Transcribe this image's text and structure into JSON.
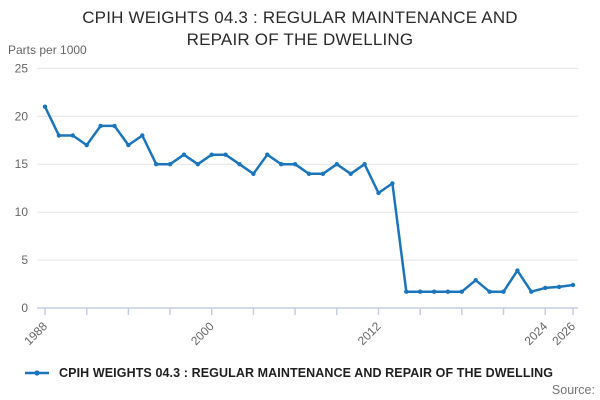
{
  "title": {
    "line1": "CPIH WEIGHTS 04.3 : REGULAR MAINTENANCE AND",
    "line2": "REPAIR OF THE DWELLING"
  },
  "units_label": "Parts per 1000",
  "legend": {
    "label": "CPIH WEIGHTS 04.3 : REGULAR MAINTENANCE AND REPAIR OF THE DWELLING"
  },
  "source_label": "Source:",
  "colors": {
    "line": "#1b75bc",
    "grid": "#e4e4e4",
    "axis": "#c3cfe6",
    "tick_text": "#666666",
    "title_text": "#2b2b2b"
  },
  "chart_data": {
    "type": "line",
    "title": "CPIH WEIGHTS 04.3 : REGULAR MAINTENANCE AND REPAIR OF THE DWELLING",
    "ylabel": "Parts per 1000",
    "xlabel": "",
    "ylim": [
      0,
      25
    ],
    "yticks": [
      0,
      5,
      10,
      15,
      20,
      25
    ],
    "xticks": [
      1988,
      1991,
      1994,
      1997,
      2000,
      2003,
      2006,
      2009,
      2012,
      2015,
      2018,
      2021,
      2024,
      2026
    ],
    "xtick_labels": [
      1988,
      2000,
      2012,
      2024,
      2026
    ],
    "grid": "horizontal",
    "legend_position": "bottom",
    "marker": "dot",
    "years": [
      1988,
      1989,
      1990,
      1991,
      1992,
      1993,
      1994,
      1995,
      1996,
      1997,
      1998,
      1999,
      2000,
      2001,
      2002,
      2003,
      2004,
      2005,
      2006,
      2007,
      2008,
      2009,
      2010,
      2011,
      2012,
      2013,
      2014,
      2015,
      2016,
      2017,
      2018,
      2019,
      2020,
      2021,
      2022,
      2023,
      2024,
      2025,
      2026
    ],
    "values": [
      21,
      18,
      18,
      17,
      19,
      19,
      17,
      18,
      15,
      15,
      16,
      15,
      16,
      16,
      15,
      14,
      16,
      15,
      15,
      14,
      14,
      15,
      14,
      15,
      12,
      13,
      1.7,
      1.7,
      1.7,
      1.7,
      1.7,
      2.9,
      1.7,
      1.7,
      3.9,
      1.7,
      2.1,
      2.2,
      2.4
    ]
  }
}
